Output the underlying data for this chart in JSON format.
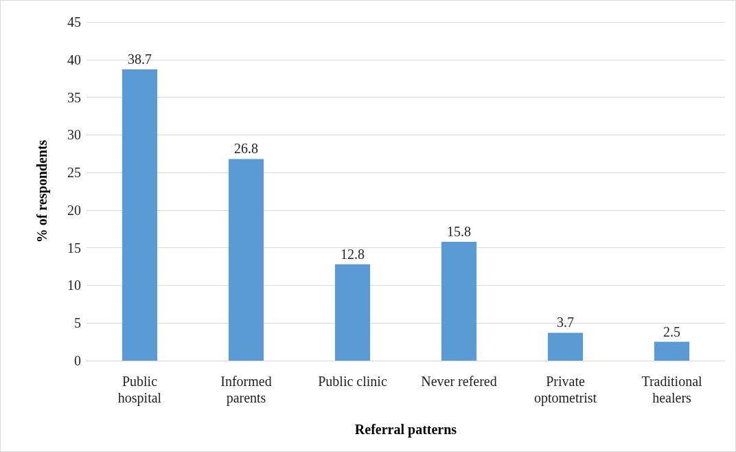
{
  "chart_data": {
    "type": "bar",
    "xlabel": "Referral patterns",
    "ylabel": "% of respondents",
    "categories": [
      "Public\nhospital",
      "Informed\nparents",
      "Public clinic",
      "Never refered",
      "Private\noptometrist",
      "Traditional\nhealers"
    ],
    "values": [
      38.7,
      26.8,
      12.8,
      15.8,
      3.7,
      2.5
    ],
    "color": "#5b9bd5",
    "ylim": [
      0,
      45
    ],
    "yticks": [
      0,
      5,
      10,
      15,
      20,
      25,
      30,
      35,
      40,
      45
    ],
    "grid": "y",
    "data_labels": true
  }
}
